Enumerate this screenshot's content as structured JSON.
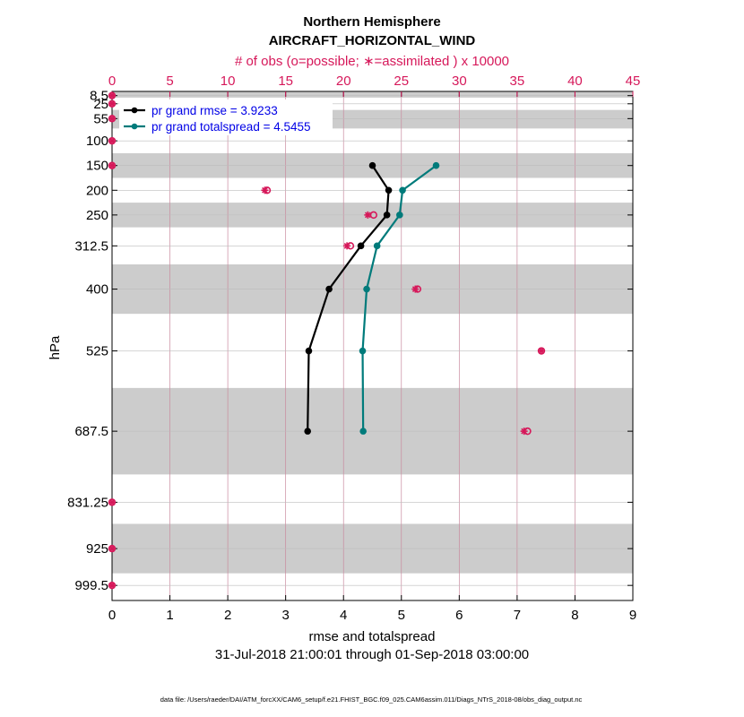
{
  "chart_data": {
    "type": "line",
    "title": "Northern Hemisphere",
    "subtitle": "AIRCRAFT_HORIZONTAL_WIND",
    "top_axis_label": "# of obs (o=possible; ∗=assimilated ) x 10000",
    "xlabel": "rmse and totalspread",
    "ylabel": "hPa",
    "date_range": "31-Jul-2018 21:00:01 through 01-Sep-2018 03:00:00",
    "footer": "data file: /Users/raeder/DAI/ATM_forcXX/CAM6_setup/f.e21.FHIST_BGC.f09_025.CAM6assim.011/Diags_NTrS_2018-08/obs_diag_output.nc",
    "xlim": [
      0,
      9
    ],
    "xticks": [
      0,
      1,
      2,
      3,
      4,
      5,
      6,
      7,
      8,
      9
    ],
    "top_xlim": [
      0,
      45
    ],
    "top_xticks": [
      0,
      5,
      10,
      15,
      20,
      25,
      30,
      35,
      40,
      45
    ],
    "levels": [
      "8.5",
      "25",
      "55",
      "100",
      "150",
      "200",
      "250",
      "312.5",
      "400",
      "525",
      "687.5",
      "831.25",
      "925",
      "999.5"
    ],
    "level_values": [
      8.5,
      25,
      55,
      100,
      150,
      200,
      250,
      312.5,
      400,
      525,
      687.5,
      831.25,
      925,
      999.5
    ],
    "shaded_bands": [
      [
        0,
        12.5
      ],
      [
        37.5,
        75
      ],
      [
        125,
        175
      ],
      [
        225,
        275
      ],
      [
        350,
        450
      ],
      [
        600,
        775
      ],
      [
        875,
        975
      ]
    ],
    "series": [
      {
        "name": "pr grand rmse = 3.9233",
        "color": "#000000",
        "points": [
          [
            4.5,
            150
          ],
          [
            4.78,
            200
          ],
          [
            4.75,
            250
          ],
          [
            4.3,
            312.5
          ],
          [
            3.75,
            400
          ],
          [
            3.4,
            525
          ],
          [
            3.38,
            687.5
          ]
        ]
      },
      {
        "name": "pr grand totalspread = 4.5455",
        "color": "#007b7b",
        "points": [
          [
            5.6,
            150
          ],
          [
            5.02,
            200
          ],
          [
            4.97,
            250
          ],
          [
            4.58,
            312.5
          ],
          [
            4.4,
            400
          ],
          [
            4.33,
            525
          ],
          [
            4.34,
            687.5
          ]
        ]
      }
    ],
    "obs": [
      {
        "level": 8.5,
        "possible": 0.0,
        "assimilated": 0.0
      },
      {
        "level": 25,
        "possible": 0.0,
        "assimilated": 0.0
      },
      {
        "level": 55,
        "possible": 0.0,
        "assimilated": 0.0
      },
      {
        "level": 100,
        "possible": 0.0,
        "assimilated": 0.0
      },
      {
        "level": 150,
        "possible": 0.0,
        "assimilated": 0.0
      },
      {
        "level": 200,
        "possible": 13.4,
        "assimilated": 13.2
      },
      {
        "level": 250,
        "possible": 22.6,
        "assimilated": 22.1
      },
      {
        "level": 312.5,
        "possible": 20.6,
        "assimilated": 20.3
      },
      {
        "level": 400,
        "possible": 26.4,
        "assimilated": 26.2
      },
      {
        "level": 525,
        "possible": 37.1,
        "assimilated": 37.1
      },
      {
        "level": 687.5,
        "possible": 35.9,
        "assimilated": 35.6
      },
      {
        "level": 831.25,
        "possible": 0.0,
        "assimilated": 0.0
      },
      {
        "level": 925,
        "possible": 0.0,
        "assimilated": 0.0
      },
      {
        "level": 999.5,
        "possible": 0.0,
        "assimilated": 0.0
      }
    ],
    "colors": {
      "obs": "#d6185a",
      "grid": "#c98a9e",
      "band": "#cccccc",
      "legend_text": "#0000e6"
    }
  }
}
